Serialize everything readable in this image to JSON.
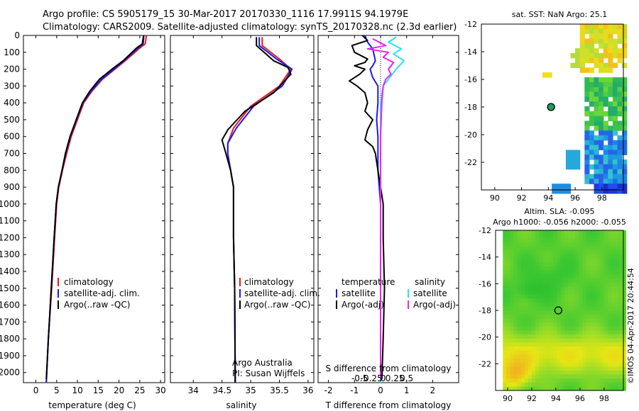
{
  "header": {
    "line1": "Argo profile: CS 5905179_15 30-Mar-2017 20170330_1116 17.9911S 94.1979E",
    "line2": "Climatology: CARS2009. Satellite-adjusted climatology: synTS_20170328.nc (2.3d earlier)"
  },
  "colors": {
    "clim": "#e8191f",
    "sat": "#1a1aee",
    "argo": "#000000",
    "salsat": "#22e5f0",
    "salargo": "#ee22ee"
  },
  "depth_ticks": [
    "0",
    "100",
    "200",
    "300",
    "400",
    "500",
    "600",
    "700",
    "800",
    "900",
    "1000",
    "1100",
    "1200",
    "1300",
    "1400",
    "1500",
    "1600",
    "1700",
    "1800",
    "1900",
    "2000"
  ],
  "chart_data": [
    {
      "type": "line",
      "id": "temperature",
      "xlabel": "temperature (deg C)",
      "xlim": [
        -3,
        31
      ],
      "ylim": [
        2060,
        0
      ],
      "xticks": [
        "0",
        "5",
        "10",
        "15",
        "20",
        "25",
        "30"
      ],
      "legend": [
        "climatology",
        "satellite-adj. clim.",
        "Argo(..raw -QC)"
      ],
      "series": [
        {
          "name": "climatology",
          "color_key": "clim",
          "points": [
            [
              26.6,
              0
            ],
            [
              26.3,
              50
            ],
            [
              25.0,
              75
            ],
            [
              21.5,
              150
            ],
            [
              19.0,
              200
            ],
            [
              16.0,
              260
            ],
            [
              13.5,
              330
            ],
            [
              11.5,
              400
            ],
            [
              10.0,
              500
            ],
            [
              8.5,
              600
            ],
            [
              7.4,
              700
            ],
            [
              6.4,
              800
            ],
            [
              5.5,
              900
            ],
            [
              5.0,
              1000
            ],
            [
              4.5,
              1200
            ],
            [
              3.8,
              1500
            ],
            [
              3.0,
              1800
            ],
            [
              2.5,
              2060
            ]
          ]
        },
        {
          "name": "satellite-adj. clim.",
          "color_key": "sat",
          "points": [
            [
              26.0,
              0
            ],
            [
              25.8,
              50
            ],
            [
              24.6,
              75
            ],
            [
              21.2,
              150
            ],
            [
              18.8,
              200
            ],
            [
              15.8,
              260
            ],
            [
              13.3,
              330
            ],
            [
              11.3,
              400
            ],
            [
              9.8,
              500
            ],
            [
              8.3,
              600
            ],
            [
              7.2,
              700
            ],
            [
              6.3,
              800
            ],
            [
              5.4,
              900
            ],
            [
              4.9,
              1000
            ],
            [
              4.4,
              1200
            ],
            [
              3.7,
              1500
            ],
            [
              3.0,
              1800
            ],
            [
              2.5,
              2060
            ]
          ]
        },
        {
          "name": "Argo(..raw -QC)",
          "color_key": "argo",
          "points": [
            [
              25.9,
              0
            ],
            [
              25.6,
              50
            ],
            [
              24.2,
              75
            ],
            [
              21.0,
              150
            ],
            [
              18.3,
              200
            ],
            [
              15.3,
              260
            ],
            [
              13.0,
              330
            ],
            [
              11.2,
              400
            ],
            [
              9.7,
              500
            ],
            [
              8.2,
              600
            ],
            [
              7.1,
              700
            ],
            [
              6.3,
              800
            ],
            [
              5.4,
              900
            ],
            [
              4.9,
              1000
            ],
            [
              4.4,
              1200
            ],
            [
              3.7,
              1500
            ],
            [
              3.0,
              1800
            ],
            [
              2.5,
              2040
            ]
          ]
        }
      ]
    },
    {
      "type": "line",
      "id": "salinity",
      "xlabel": "salinity",
      "xlim": [
        33.6,
        36.1
      ],
      "ylim": [
        2060,
        0
      ],
      "xticks": [
        "34",
        "34.5",
        "35",
        "35.5",
        "36"
      ],
      "legend": [
        "climatology",
        "satellite-adj. clim.",
        "Argo(..raw -QC)"
      ],
      "annotation": [
        "Argo Australia",
        "PI: Susan Wijffels"
      ],
      "series": [
        {
          "name": "climatology",
          "color_key": "clim",
          "points": [
            [
              35.2,
              10
            ],
            [
              35.2,
              60
            ],
            [
              35.5,
              140
            ],
            [
              35.7,
              200
            ],
            [
              35.5,
              300
            ],
            [
              35.0,
              420
            ],
            [
              34.7,
              550
            ],
            [
              34.6,
              640
            ],
            [
              34.6,
              700
            ],
            [
              34.65,
              800
            ],
            [
              34.7,
              900
            ],
            [
              34.7,
              1200
            ],
            [
              34.72,
              1500
            ],
            [
              34.73,
              2060
            ]
          ]
        },
        {
          "name": "satellite-adj. clim.",
          "color_key": "sat",
          "points": [
            [
              35.15,
              10
            ],
            [
              35.15,
              60
            ],
            [
              35.45,
              140
            ],
            [
              35.72,
              200
            ],
            [
              35.55,
              300
            ],
            [
              35.05,
              420
            ],
            [
              34.75,
              550
            ],
            [
              34.6,
              640
            ],
            [
              34.6,
              700
            ],
            [
              34.65,
              800
            ],
            [
              34.7,
              900
            ],
            [
              34.7,
              1200
            ],
            [
              34.72,
              1500
            ],
            [
              34.73,
              2060
            ]
          ]
        },
        {
          "name": "Argo(..raw -QC)",
          "color_key": "argo",
          "points": [
            [
              35.1,
              10
            ],
            [
              35.1,
              60
            ],
            [
              35.4,
              150
            ],
            [
              35.65,
              190
            ],
            [
              35.7,
              230
            ],
            [
              35.4,
              340
            ],
            [
              34.9,
              450
            ],
            [
              34.6,
              560
            ],
            [
              34.5,
              620
            ],
            [
              34.55,
              680
            ],
            [
              34.65,
              800
            ],
            [
              34.7,
              900
            ],
            [
              34.7,
              1200
            ],
            [
              34.72,
              1500
            ],
            [
              34.73,
              2060
            ]
          ]
        }
      ]
    },
    {
      "type": "line",
      "id": "difference",
      "xlabel": "T difference from climatology",
      "xlabel_top": "S difference from climatology",
      "xlim": [
        -2.4,
        3.0
      ],
      "ylim": [
        2060,
        0
      ],
      "xticks": [
        "-2",
        "-1",
        "0",
        "1",
        "2"
      ],
      "xticks_top": [
        "-0.5",
        "-0.25",
        "0",
        "0.25",
        "0.5"
      ],
      "legend_t_title": "temperature",
      "legend_s_title": "salinity",
      "legend_t": [
        "satellite",
        "Argo(-adj)"
      ],
      "legend_s": [
        "satellite",
        "Argo(-adj)"
      ],
      "series": [
        {
          "name": "T satellite",
          "color_key": "sat",
          "points": [
            [
              -0.6,
              0
            ],
            [
              -0.5,
              40
            ],
            [
              -0.3,
              80
            ],
            [
              -0.2,
              150
            ],
            [
              -0.3,
              180
            ],
            [
              -0.4,
              200
            ],
            [
              -0.3,
              250
            ],
            [
              -0.1,
              300
            ],
            [
              -0.1,
              400
            ],
            [
              -0.15,
              500
            ],
            [
              -0.1,
              600
            ],
            [
              -0.1,
              800
            ],
            [
              0.0,
              1000
            ],
            [
              0.0,
              1500
            ],
            [
              0.0,
              2060
            ]
          ]
        },
        {
          "name": "T Argo(-adj)",
          "color_key": "argo",
          "points": [
            [
              -0.7,
              0
            ],
            [
              -0.5,
              30
            ],
            [
              -1.1,
              60
            ],
            [
              -1.0,
              100
            ],
            [
              -0.5,
              140
            ],
            [
              -0.6,
              160
            ],
            [
              -1.0,
              180
            ],
            [
              -0.6,
              200
            ],
            [
              -0.8,
              230
            ],
            [
              -1.2,
              270
            ],
            [
              -0.9,
              300
            ],
            [
              -0.6,
              340
            ],
            [
              -0.5,
              400
            ],
            [
              -0.6,
              450
            ],
            [
              -0.3,
              500
            ],
            [
              -0.5,
              560
            ],
            [
              -0.6,
              620
            ],
            [
              -0.3,
              660
            ],
            [
              -0.2,
              700
            ],
            [
              -0.1,
              800
            ],
            [
              0.0,
              900
            ],
            [
              0.1,
              1000
            ],
            [
              0.1,
              1200
            ],
            [
              0.15,
              1500
            ],
            [
              0.1,
              1800
            ],
            [
              0.05,
              2040
            ]
          ]
        },
        {
          "name": "S satellite",
          "color_key": "salsat",
          "points": [
            [
              0.6,
              10
            ],
            [
              0.3,
              40
            ],
            [
              0.8,
              80
            ],
            [
              0.5,
              110
            ],
            [
              0.9,
              150
            ],
            [
              0.6,
              200
            ],
            [
              0.1,
              300
            ],
            [
              0.0,
              400
            ],
            [
              0.0,
              600
            ],
            [
              0.0,
              800
            ],
            [
              0.0,
              2060
            ]
          ]
        },
        {
          "name": "S Argo(-adj)",
          "color_key": "salargo",
          "points": [
            [
              -0.3,
              20
            ],
            [
              0.2,
              60
            ],
            [
              -0.5,
              80
            ],
            [
              0.3,
              100
            ],
            [
              0.1,
              130
            ],
            [
              0.5,
              160
            ],
            [
              0.3,
              200
            ],
            [
              0.4,
              230
            ],
            [
              0.2,
              260
            ],
            [
              0.1,
              300
            ],
            [
              0.05,
              400
            ],
            [
              0.0,
              600
            ],
            [
              0.0,
              800
            ],
            [
              0.0,
              2040
            ]
          ]
        }
      ]
    },
    {
      "type": "heatmap",
      "id": "sst_map",
      "title": "sat. SST: NaN Argo: 25.1",
      "xlim": [
        89,
        99.6
      ],
      "ylim": [
        -24,
        -12
      ],
      "xticks": [
        "90",
        "92",
        "94",
        "96",
        "98"
      ],
      "yticks": [
        "-12",
        "-14",
        "-16",
        "-18",
        "-20",
        "-22"
      ],
      "marker": [
        94.2,
        -18.0
      ]
    },
    {
      "type": "heatmap",
      "id": "sla_map",
      "title": "Altim. SLA: -0.095",
      "subtitle": "Argo h1000: -0.056 h2000: -0.055",
      "xlim": [
        89,
        99.6
      ],
      "ylim": [
        -24,
        -12
      ],
      "xticks": [
        "90",
        "92",
        "94",
        "96",
        "98"
      ],
      "yticks": [
        "-12",
        "-14",
        "-16",
        "-18",
        "-20",
        "-22"
      ],
      "marker": [
        94.2,
        -18.0
      ]
    }
  ],
  "footer_stamp": "©IMOS 04-Apr-2017 20:44:54"
}
